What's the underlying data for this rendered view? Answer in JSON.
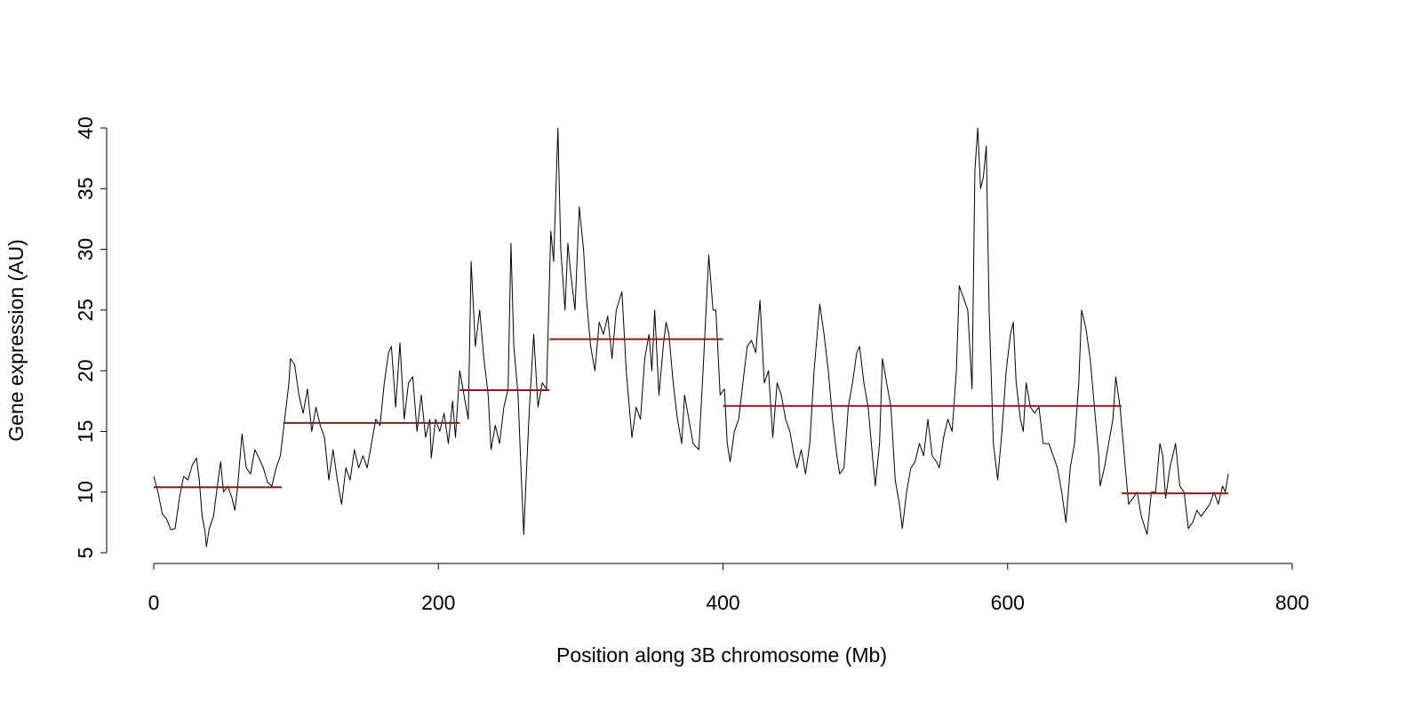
{
  "chart_data": {
    "type": "line",
    "xlabel": "Position along 3B chromosome (Mb)",
    "ylabel": "Gene expression (AU)",
    "xlim": [
      0,
      800
    ],
    "xticks": [
      0,
      200,
      400,
      600,
      800
    ],
    "ylim": [
      5,
      40
    ],
    "yticks": [
      5,
      10,
      15,
      20,
      25,
      30,
      35,
      40
    ],
    "color": "#000000",
    "x": [
      0,
      3,
      6,
      9,
      12,
      15,
      18,
      21,
      24,
      27,
      30,
      32,
      34,
      36,
      37,
      39,
      42,
      45,
      47,
      49,
      52,
      55,
      57,
      59,
      62,
      65,
      68,
      71,
      74,
      77,
      80,
      83,
      86,
      89,
      92,
      95,
      96,
      99,
      102,
      105,
      108,
      111,
      114,
      117,
      120,
      123,
      126,
      129,
      132,
      135,
      138,
      141,
      144,
      147,
      150,
      153,
      156,
      159,
      162,
      165,
      167,
      170,
      173,
      176,
      179,
      182,
      185,
      188,
      191,
      194,
      195,
      198,
      201,
      204,
      207,
      210,
      212,
      215,
      218,
      221,
      223,
      226,
      229,
      232,
      235,
      237,
      240,
      243,
      246,
      249,
      251,
      253,
      256,
      258,
      260,
      262,
      264,
      267,
      270,
      273,
      276,
      279,
      281,
      284,
      286,
      289,
      291,
      293,
      296,
      299,
      302,
      304,
      307,
      310,
      313,
      316,
      319,
      322,
      325,
      329,
      332,
      336,
      339,
      342,
      345,
      348,
      350,
      352,
      355,
      358,
      360,
      362,
      365,
      368,
      371,
      373,
      376,
      379,
      383,
      386,
      390,
      393,
      395,
      398,
      401,
      403,
      405,
      408,
      411,
      414,
      417,
      420,
      423,
      426,
      429,
      432,
      435,
      438,
      441,
      444,
      447,
      450,
      452,
      455,
      458,
      461,
      464,
      468,
      471,
      474,
      477,
      480,
      482,
      485,
      488,
      491,
      494,
      496,
      499,
      502,
      505,
      507,
      510,
      512,
      515,
      518,
      521,
      524,
      526,
      529,
      532,
      535,
      538,
      541,
      544,
      547,
      550,
      552,
      555,
      558,
      561,
      564,
      566,
      569,
      572,
      575,
      577,
      579,
      581,
      583,
      585,
      587,
      590,
      593,
      596,
      599,
      602,
      604,
      606,
      609,
      611,
      613,
      616,
      619,
      622,
      625,
      629,
      632,
      635,
      638,
      641,
      644,
      647,
      650,
      652,
      655,
      658,
      661,
      664,
      665,
      668,
      671,
      674,
      676,
      679,
      682,
      685,
      688,
      691,
      694,
      698,
      701,
      704,
      707,
      709,
      711,
      714,
      716,
      718,
      721,
      724,
      727,
      730,
      733,
      736,
      739,
      742,
      745,
      748,
      751,
      753,
      755
    ],
    "values": [
      11.3,
      10,
      8.2,
      7.8,
      6.9,
      7,
      9.5,
      11.3,
      11,
      12.2,
      12.8,
      11,
      8,
      6.8,
      5.5,
      7,
      8,
      10.8,
      12.5,
      10,
      10.5,
      9.5,
      8.5,
      10.5,
      14.8,
      12,
      11.5,
      13.5,
      12.8,
      12,
      10.8,
      10.5,
      12,
      13,
      16,
      19,
      21,
      20.5,
      18,
      16.5,
      18.5,
      15,
      17,
      15.5,
      14.5,
      11,
      13.5,
      11,
      9,
      12,
      11,
      13.5,
      12,
      13,
      12,
      14,
      16,
      15.5,
      19,
      21.5,
      22,
      17,
      22.3,
      16,
      19,
      19.5,
      15,
      18,
      14.5,
      16,
      12.8,
      16,
      15,
      16.5,
      14,
      17.5,
      14.5,
      20,
      18,
      16,
      29,
      22,
      25,
      21,
      18,
      13.5,
      15.5,
      14,
      17,
      18.5,
      30.5,
      22,
      18,
      12,
      6.5,
      12,
      17,
      23,
      17,
      19,
      18.5,
      31.5,
      29,
      40,
      30,
      25,
      30.5,
      28,
      25,
      33.5,
      30,
      26,
      22,
      20,
      24,
      23,
      24.5,
      21,
      25,
      26.5,
      20,
      14.5,
      17,
      16,
      21,
      23,
      20,
      25,
      18,
      22,
      24,
      23,
      19,
      16,
      14,
      18,
      16,
      14,
      13.5,
      20,
      29.5,
      25,
      25,
      18,
      18.5,
      14,
      12.5,
      15,
      16,
      19,
      22,
      22.5,
      21.5,
      25.8,
      19,
      20,
      14.5,
      19,
      18,
      16,
      15,
      13,
      12,
      13.5,
      11.5,
      14,
      20,
      25.5,
      23,
      20,
      16,
      13,
      11.5,
      12,
      17,
      19,
      21.5,
      22,
      19,
      17,
      13,
      10.5,
      14,
      21,
      19,
      17,
      11,
      9,
      7,
      10,
      12,
      12.5,
      14,
      13,
      16,
      13,
      12.5,
      12,
      14.5,
      16,
      15,
      20,
      27,
      26,
      25,
      18.5,
      36.5,
      40,
      35,
      36,
      38.5,
      25,
      14,
      11,
      15,
      20,
      23,
      24,
      19,
      16,
      15,
      19,
      17,
      16.5,
      17,
      14,
      14,
      13,
      12,
      10,
      7.5,
      12,
      14,
      19,
      25,
      23.5,
      21,
      17,
      13,
      10.5,
      12,
      14,
      16,
      19.5,
      17,
      13,
      9,
      9.5,
      10,
      8,
      6.5,
      10,
      10,
      14,
      13,
      9.5,
      12,
      13,
      14,
      10.5,
      10,
      7,
      7.5,
      8.5,
      8,
      8.5,
      9,
      10,
      9,
      10.5,
      10,
      11.5
    ],
    "segment_color": "#8b1a1a",
    "segments": [
      {
        "x": [
          0,
          90
        ],
        "value": 10.4
      },
      {
        "x": [
          91,
          215
        ],
        "value": 15.7
      },
      {
        "x": [
          215,
          278
        ],
        "value": 18.4
      },
      {
        "x": [
          278,
          400
        ],
        "value": 22.6
      },
      {
        "x": [
          400,
          680
        ],
        "value": 17.1
      },
      {
        "x": [
          680,
          755
        ],
        "value": 9.9
      }
    ]
  }
}
